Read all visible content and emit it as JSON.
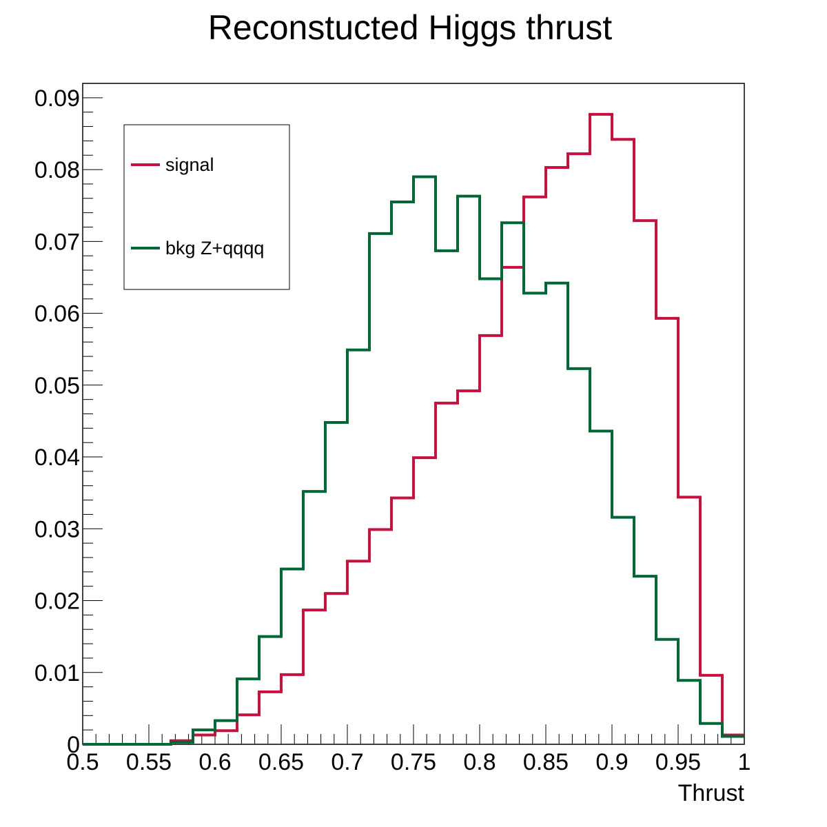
{
  "chart_data": {
    "type": "histogram",
    "title": "Reconstucted Higgs thrust",
    "xlabel": "Thrust",
    "ylabel": "",
    "xlim": [
      0.5,
      1.0
    ],
    "ylim": [
      0,
      0.092
    ],
    "bin_edges": [
      0.5,
      0.516667,
      0.533333,
      0.55,
      0.566667,
      0.583333,
      0.6,
      0.616667,
      0.633333,
      0.65,
      0.666667,
      0.683333,
      0.7,
      0.716667,
      0.733333,
      0.75,
      0.766667,
      0.783333,
      0.8,
      0.816667,
      0.833333,
      0.85,
      0.866667,
      0.883333,
      0.9,
      0.916667,
      0.933333,
      0.95,
      0.966667,
      0.983333,
      1.0
    ],
    "x_ticks": [
      "0.5",
      "0.55",
      "0.6",
      "0.65",
      "0.7",
      "0.75",
      "0.8",
      "0.85",
      "0.9",
      "0.95",
      "1"
    ],
    "x_tick_values": [
      0.5,
      0.55,
      0.6,
      0.65,
      0.7,
      0.75,
      0.8,
      0.85,
      0.9,
      0.95,
      1.0
    ],
    "y_ticks": [
      "0",
      "0.01",
      "0.02",
      "0.03",
      "0.04",
      "0.05",
      "0.06",
      "0.07",
      "0.08",
      "0.09"
    ],
    "y_tick_values": [
      0,
      0.01,
      0.02,
      0.03,
      0.04,
      0.05,
      0.06,
      0.07,
      0.08,
      0.09
    ],
    "series": [
      {
        "name": "signal",
        "color": "#c8103c",
        "values": [
          0,
          0,
          0,
          0,
          0.0005,
          0.0013,
          0.0019,
          0.0041,
          0.0073,
          0.0097,
          0.0187,
          0.021,
          0.0255,
          0.0299,
          0.0343,
          0.0399,
          0.0475,
          0.0492,
          0.0569,
          0.0664,
          0.0762,
          0.0803,
          0.0822,
          0.0877,
          0.0842,
          0.0729,
          0.0593,
          0.0344,
          0.0096,
          0.0013
        ]
      },
      {
        "name": "bkg Z+qqqq",
        "color": "#006633",
        "values": [
          0,
          0,
          0,
          0,
          0.0003,
          0.002,
          0.0033,
          0.0091,
          0.015,
          0.0244,
          0.0352,
          0.0448,
          0.0549,
          0.0711,
          0.0755,
          0.079,
          0.0687,
          0.0763,
          0.0648,
          0.0726,
          0.0628,
          0.0642,
          0.0523,
          0.0436,
          0.0316,
          0.0234,
          0.0146,
          0.0089,
          0.0029,
          0.0011
        ]
      }
    ],
    "legend": {
      "position": "top-left",
      "boxed": true
    },
    "grid": false
  }
}
